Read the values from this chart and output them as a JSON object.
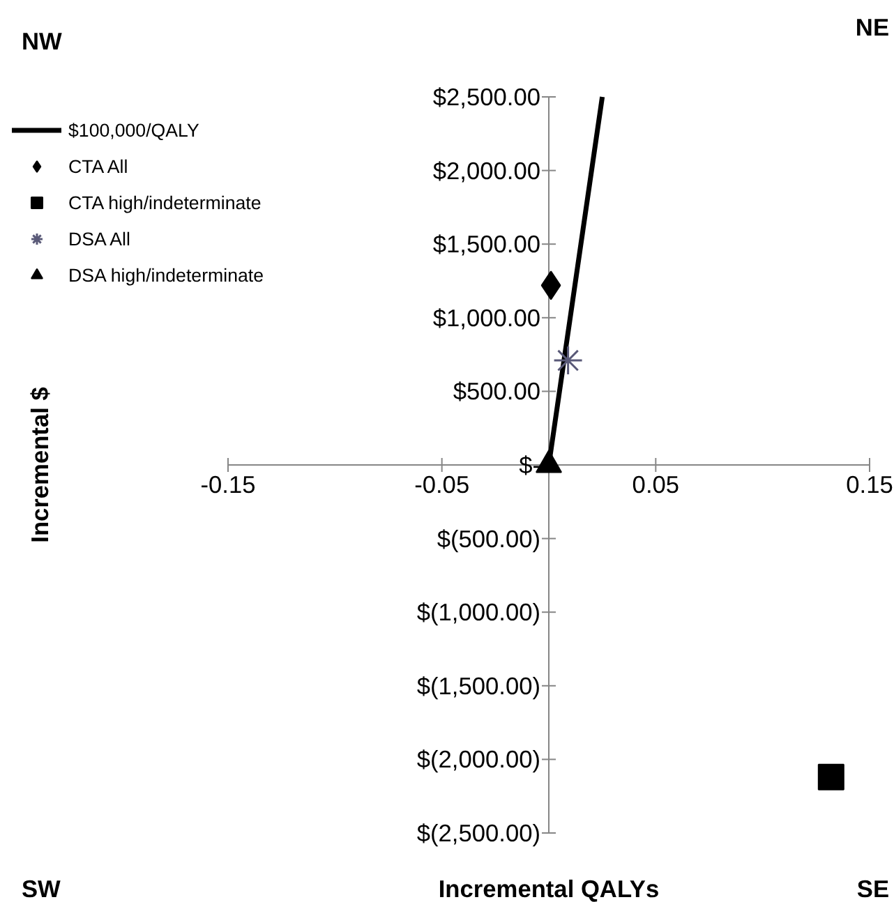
{
  "chart_data": {
    "type": "scatter",
    "xlabel": "Incremental QALYs",
    "annotations": [
      "NW",
      "NE",
      "SW",
      "SE",
      "Incremental $"
    ],
    "xlim": [
      -0.15,
      0.15
    ],
    "ylim": [
      -2500,
      2500
    ],
    "xticks": [
      -0.15,
      -0.05,
      0.05,
      0.15
    ],
    "yticks": [
      {
        "value": 2500,
        "label": "$2,500.00"
      },
      {
        "value": 2000,
        "label": "$2,000.00"
      },
      {
        "value": 1500,
        "label": "$1,500.00"
      },
      {
        "value": 1000,
        "label": "$1,000.00"
      },
      {
        "value": 500,
        "label": "$500.00"
      },
      {
        "value": 0,
        "label": "$-"
      },
      {
        "value": -500,
        "label": "$(500.00)"
      },
      {
        "value": -1000,
        "label": "$(1,000.00)"
      },
      {
        "value": -1500,
        "label": "$(1,500.00)"
      },
      {
        "value": -2000,
        "label": "$(2,000.00)"
      },
      {
        "value": -2500,
        "label": "$(2,500.00)"
      }
    ],
    "grid": false,
    "legend": "top left",
    "series": [
      {
        "name": "$100,000/QALY",
        "type": "line",
        "color": "#000000",
        "marker": "none",
        "line_style": "solid",
        "x": [
          0,
          0.025
        ],
        "values": [
          0,
          2500
        ]
      },
      {
        "name": "CTA All",
        "color": "#000000",
        "marker": "diamond",
        "x": [
          0.001
        ],
        "values": [
          1220
        ]
      },
      {
        "name": "CTA high/indeterminate",
        "color": "#000000",
        "marker": "square",
        "x": [
          0.132
        ],
        "values": [
          -2120
        ]
      },
      {
        "name": "DSA All",
        "color": "#5a5a78",
        "marker": "cross",
        "x": [
          0.009
        ],
        "values": [
          710
        ]
      },
      {
        "name": "DSA high/indeterminate",
        "color": "#000000",
        "marker": "triangle",
        "x": [
          0.0
        ],
        "values": [
          0
        ]
      }
    ]
  }
}
